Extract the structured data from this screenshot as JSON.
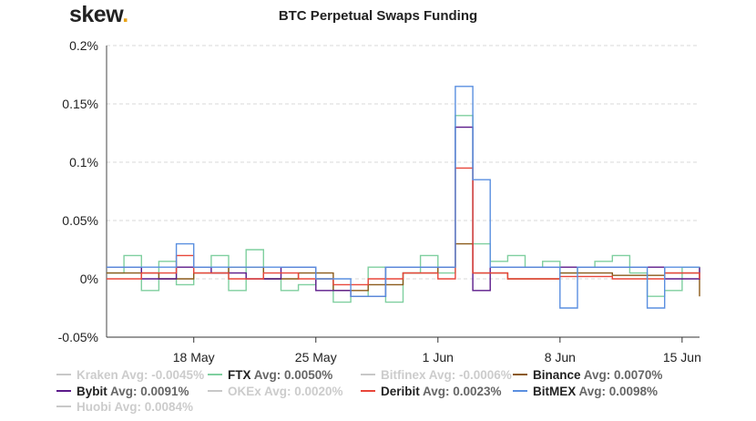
{
  "brand": {
    "name": "skew",
    "dot": "."
  },
  "chart_data": {
    "type": "line",
    "title": "BTC Perpetual Swaps Funding",
    "xlabel": "",
    "ylabel": "",
    "x_unit": "date (2020)",
    "y_unit": "percent funding rate",
    "xlim": [
      "2020-05-13",
      "2020-06-16"
    ],
    "ylim": [
      -0.05,
      0.2
    ],
    "yticks": [
      -0.05,
      0,
      0.05,
      0.1,
      0.15,
      0.2
    ],
    "ytick_labels": [
      "-0.05%",
      "0%",
      "0.05%",
      "0.1%",
      "0.15%",
      "0.2%"
    ],
    "xticks": [
      "2020-05-18",
      "2020-05-25",
      "2020-06-01",
      "2020-06-08",
      "2020-06-15"
    ],
    "xtick_labels": [
      "18 May",
      "25 May",
      "1 Jun",
      "8 Jun",
      "15 Jun"
    ],
    "grid": "horizontal dashed",
    "legend_position": "bottom",
    "series": [
      {
        "name": "Kraken",
        "avg": "Avg: -0.0045%",
        "visible": false,
        "color": "#c8c8c8",
        "points": []
      },
      {
        "name": "FTX",
        "avg": "Avg: 0.0050%",
        "visible": true,
        "color": "#7fcf9f",
        "points": [
          [
            "2020-05-13",
            0.005
          ],
          [
            "2020-05-14",
            0.02
          ],
          [
            "2020-05-15",
            -0.01
          ],
          [
            "2020-05-16",
            0.015
          ],
          [
            "2020-05-17",
            -0.005
          ],
          [
            "2020-05-18",
            0.01
          ],
          [
            "2020-05-19",
            0.02
          ],
          [
            "2020-05-20",
            -0.01
          ],
          [
            "2020-05-21",
            0.025
          ],
          [
            "2020-05-22",
            0.0
          ],
          [
            "2020-05-23",
            -0.01
          ],
          [
            "2020-05-24",
            -0.005
          ],
          [
            "2020-05-25",
            0.0
          ],
          [
            "2020-05-26",
            -0.02
          ],
          [
            "2020-05-27",
            -0.015
          ],
          [
            "2020-05-28",
            0.01
          ],
          [
            "2020-05-29",
            -0.02
          ],
          [
            "2020-05-30",
            0.005
          ],
          [
            "2020-05-31",
            0.02
          ],
          [
            "2020-06-01",
            0.005
          ],
          [
            "2020-06-02",
            0.14
          ],
          [
            "2020-06-03",
            0.03
          ],
          [
            "2020-06-04",
            0.015
          ],
          [
            "2020-06-05",
            0.02
          ],
          [
            "2020-06-06",
            0.01
          ],
          [
            "2020-06-07",
            0.015
          ],
          [
            "2020-06-08",
            0.005
          ],
          [
            "2020-06-09",
            0.01
          ],
          [
            "2020-06-10",
            0.015
          ],
          [
            "2020-06-11",
            0.02
          ],
          [
            "2020-06-12",
            0.005
          ],
          [
            "2020-06-13",
            -0.015
          ],
          [
            "2020-06-14",
            -0.01
          ],
          [
            "2020-06-15",
            0.01
          ],
          [
            "2020-06-16",
            0.005
          ]
        ]
      },
      {
        "name": "Bitfinex",
        "avg": "Avg: -0.0006%",
        "visible": false,
        "color": "#c8c8c8",
        "points": []
      },
      {
        "name": "Binance",
        "avg": "Avg: 0.0070%",
        "visible": true,
        "color": "#8b5a1a",
        "points": [
          [
            "2020-05-13",
            0.005
          ],
          [
            "2020-05-16",
            0.0
          ],
          [
            "2020-05-18",
            0.005
          ],
          [
            "2020-05-20",
            0.01
          ],
          [
            "2020-05-22",
            0.0
          ],
          [
            "2020-05-24",
            0.005
          ],
          [
            "2020-05-26",
            -0.01
          ],
          [
            "2020-05-28",
            -0.005
          ],
          [
            "2020-05-30",
            0.005
          ],
          [
            "2020-06-01",
            0.01
          ],
          [
            "2020-06-02",
            0.03
          ],
          [
            "2020-06-03",
            0.005
          ],
          [
            "2020-06-05",
            0.0
          ],
          [
            "2020-06-08",
            0.005
          ],
          [
            "2020-06-11",
            0.003
          ],
          [
            "2020-06-14",
            0.005
          ],
          [
            "2020-06-16",
            -0.015
          ]
        ]
      },
      {
        "name": "Bybit",
        "avg": "Avg: 0.0091%",
        "visible": true,
        "color": "#5b1a8a",
        "points": [
          [
            "2020-05-13",
            0.01
          ],
          [
            "2020-05-15",
            0.0
          ],
          [
            "2020-05-17",
            0.01
          ],
          [
            "2020-05-19",
            0.005
          ],
          [
            "2020-05-21",
            0.0
          ],
          [
            "2020-05-23",
            0.01
          ],
          [
            "2020-05-25",
            -0.01
          ],
          [
            "2020-05-27",
            -0.015
          ],
          [
            "2020-05-29",
            0.01
          ],
          [
            "2020-05-31",
            0.01
          ],
          [
            "2020-06-02",
            0.13
          ],
          [
            "2020-06-03",
            -0.01
          ],
          [
            "2020-06-04",
            0.01
          ],
          [
            "2020-06-08",
            0.01
          ],
          [
            "2020-06-11",
            0.01
          ],
          [
            "2020-06-14",
            0.0
          ],
          [
            "2020-06-16",
            0.01
          ]
        ]
      },
      {
        "name": "OKEx",
        "avg": "Avg: 0.0020%",
        "visible": false,
        "color": "#c8c8c8",
        "points": []
      },
      {
        "name": "Deribit",
        "avg": "Avg: 0.0023%",
        "visible": true,
        "color": "#e8463a",
        "points": [
          [
            "2020-05-13",
            0.0
          ],
          [
            "2020-05-15",
            0.005
          ],
          [
            "2020-05-17",
            0.02
          ],
          [
            "2020-05-18",
            0.005
          ],
          [
            "2020-05-20",
            0.0
          ],
          [
            "2020-05-22",
            0.005
          ],
          [
            "2020-05-24",
            0.0
          ],
          [
            "2020-05-26",
            -0.005
          ],
          [
            "2020-05-28",
            0.0
          ],
          [
            "2020-05-30",
            0.005
          ],
          [
            "2020-06-01",
            0.0
          ],
          [
            "2020-06-02",
            0.095
          ],
          [
            "2020-06-03",
            0.005
          ],
          [
            "2020-06-05",
            0.0
          ],
          [
            "2020-06-08",
            0.002
          ],
          [
            "2020-06-11",
            0.0
          ],
          [
            "2020-06-14",
            0.005
          ],
          [
            "2020-06-16",
            0.0
          ]
        ]
      },
      {
        "name": "BitMEX",
        "avg": "Avg: 0.0098%",
        "visible": true,
        "color": "#5a8fe0",
        "points": [
          [
            "2020-05-13",
            0.01
          ],
          [
            "2020-05-16",
            0.01
          ],
          [
            "2020-05-17",
            0.03
          ],
          [
            "2020-05-18",
            0.01
          ],
          [
            "2020-05-21",
            0.01
          ],
          [
            "2020-05-25",
            0.0
          ],
          [
            "2020-05-27",
            -0.015
          ],
          [
            "2020-05-29",
            0.01
          ],
          [
            "2020-06-01",
            0.01
          ],
          [
            "2020-06-02",
            0.165
          ],
          [
            "2020-06-03",
            0.085
          ],
          [
            "2020-06-04",
            0.01
          ],
          [
            "2020-06-08",
            -0.025
          ],
          [
            "2020-06-09",
            0.01
          ],
          [
            "2020-06-11",
            0.01
          ],
          [
            "2020-06-13",
            -0.025
          ],
          [
            "2020-06-14",
            0.01
          ],
          [
            "2020-06-16",
            0.01
          ]
        ]
      },
      {
        "name": "Huobi",
        "avg": "Avg: 0.0084%",
        "visible": false,
        "color": "#c8c8c8",
        "points": []
      }
    ]
  }
}
